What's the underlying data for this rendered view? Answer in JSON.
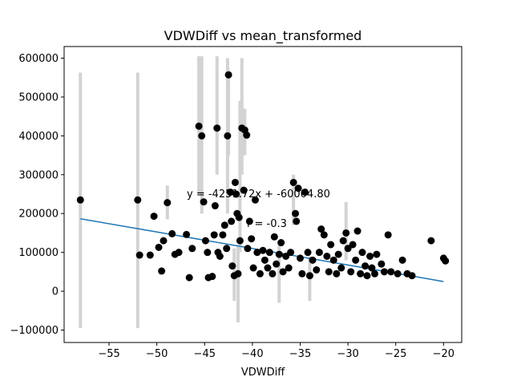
{
  "chart_data": {
    "type": "scatter",
    "title": "VDWDiff vs mean_transformed",
    "xlabel": "VDWDiff",
    "ylabel": "",
    "xlim": [
      -59.7,
      -18.1
    ],
    "ylim": [
      -132000,
      630000
    ],
    "xticks": [
      -55,
      -50,
      -45,
      -40,
      -35,
      -30,
      -25,
      -20
    ],
    "yticks": [
      -100000,
      0,
      100000,
      200000,
      300000,
      400000,
      500000,
      600000
    ],
    "xtick_labels": [
      "−55",
      "−50",
      "−45",
      "−40",
      "−35",
      "−30",
      "−25",
      "−20"
    ],
    "ytick_labels": [
      "−100000",
      "0",
      "100000",
      "200000",
      "300000",
      "400000",
      "500000",
      "600000"
    ],
    "grid": false,
    "annotations": [
      "y = -4251.72x + -60004.80",
      "r = -0.3"
    ],
    "fit_line": {
      "x": [
        -58,
        -20
      ],
      "y": [
        186600,
        25000
      ],
      "color": "#1f77b4"
    },
    "marker_color": "#000000",
    "errorbar_color": "#d3d3d3",
    "points": [
      {
        "x": -58.0,
        "y": 235000,
        "lo": -95000,
        "hi": 563000
      },
      {
        "x": -52.0,
        "y": 235000,
        "lo": -95000,
        "hi": 563000
      },
      {
        "x": -51.8,
        "y": 93000
      },
      {
        "x": -50.7,
        "y": 93000
      },
      {
        "x": -50.3,
        "y": 193000
      },
      {
        "x": -49.8,
        "y": 113000
      },
      {
        "x": -49.5,
        "y": 52000
      },
      {
        "x": -49.3,
        "y": 130000
      },
      {
        "x": -48.9,
        "y": 228000,
        "lo": 185000,
        "hi": 272000
      },
      {
        "x": -48.4,
        "y": 148000
      },
      {
        "x": -48.1,
        "y": 95000
      },
      {
        "x": -47.7,
        "y": 100000
      },
      {
        "x": -46.9,
        "y": 146000
      },
      {
        "x": -46.6,
        "y": 35000
      },
      {
        "x": -46.3,
        "y": 110000
      },
      {
        "x": -45.6,
        "y": 425000,
        "lo": 250000,
        "hi": 605000
      },
      {
        "x": -45.3,
        "y": 400000,
        "lo": 200000,
        "hi": 605000
      },
      {
        "x": -45.1,
        "y": 230000
      },
      {
        "x": -44.9,
        "y": 130000
      },
      {
        "x": -44.7,
        "y": 100000
      },
      {
        "x": -44.6,
        "y": 35000
      },
      {
        "x": -44.2,
        "y": 38000
      },
      {
        "x": -44.0,
        "y": 145000
      },
      {
        "x": -43.9,
        "y": 220000
      },
      {
        "x": -43.7,
        "y": 420000,
        "lo": 300000,
        "hi": 605000
      },
      {
        "x": -43.6,
        "y": 100000
      },
      {
        "x": -43.4,
        "y": 90000
      },
      {
        "x": -43.1,
        "y": 145000
      },
      {
        "x": -42.9,
        "y": 170000
      },
      {
        "x": -42.7,
        "y": 110000
      },
      {
        "x": -42.6,
        "y": 400000,
        "lo": 200000,
        "hi": 600000
      },
      {
        "x": -42.5,
        "y": 557000,
        "lo": 350000,
        "hi": 570000
      },
      {
        "x": -42.3,
        "y": 255000
      },
      {
        "x": -42.2,
        "y": 180000
      },
      {
        "x": -42.1,
        "y": 65000
      },
      {
        "x": -41.9,
        "y": 40000,
        "lo": -25000,
        "hi": 110000
      },
      {
        "x": -41.8,
        "y": 280000
      },
      {
        "x": -41.7,
        "y": 250000
      },
      {
        "x": -41.6,
        "y": 200000
      },
      {
        "x": -41.5,
        "y": 45000,
        "lo": -80000,
        "hi": 120000
      },
      {
        "x": -41.4,
        "y": 190000
      },
      {
        "x": -41.3,
        "y": 130000,
        "lo": 100000,
        "hi": 490000
      },
      {
        "x": -41.1,
        "y": 420000,
        "lo": 300000,
        "hi": 600000
      },
      {
        "x": -40.9,
        "y": 260000
      },
      {
        "x": -40.8,
        "y": 415000,
        "lo": 350000,
        "hi": 470000
      },
      {
        "x": -40.6,
        "y": 402000
      },
      {
        "x": -40.5,
        "y": 110000
      },
      {
        "x": -40.3,
        "y": 180000
      },
      {
        "x": -40.1,
        "y": 135000
      },
      {
        "x": -39.9,
        "y": 60000
      },
      {
        "x": -39.7,
        "y": 235000
      },
      {
        "x": -39.5,
        "y": 100000
      },
      {
        "x": -39.2,
        "y": 45000
      },
      {
        "x": -38.9,
        "y": 105000
      },
      {
        "x": -38.7,
        "y": 80000
      },
      {
        "x": -38.4,
        "y": 60000
      },
      {
        "x": -38.2,
        "y": 100000
      },
      {
        "x": -37.9,
        "y": 45000
      },
      {
        "x": -37.7,
        "y": 140000
      },
      {
        "x": -37.5,
        "y": 70000
      },
      {
        "x": -37.2,
        "y": 95000,
        "lo": -30000,
        "hi": 120000
      },
      {
        "x": -37.0,
        "y": 125000
      },
      {
        "x": -36.8,
        "y": 50000
      },
      {
        "x": -36.5,
        "y": 90000
      },
      {
        "x": -36.2,
        "y": 60000
      },
      {
        "x": -36.0,
        "y": 100000
      },
      {
        "x": -35.7,
        "y": 280000,
        "lo": 170000,
        "hi": 300000
      },
      {
        "x": -35.5,
        "y": 200000
      },
      {
        "x": -35.4,
        "y": 180000
      },
      {
        "x": -35.2,
        "y": 265000
      },
      {
        "x": -35.0,
        "y": 85000
      },
      {
        "x": -34.8,
        "y": 45000
      },
      {
        "x": -34.5,
        "y": 255000
      },
      {
        "x": -34.2,
        "y": 100000
      },
      {
        "x": -34.0,
        "y": 40000,
        "lo": -25000,
        "hi": 90000
      },
      {
        "x": -33.7,
        "y": 80000
      },
      {
        "x": -33.3,
        "y": 55000
      },
      {
        "x": -33.0,
        "y": 100000
      },
      {
        "x": -32.8,
        "y": 160000
      },
      {
        "x": -32.5,
        "y": 145000
      },
      {
        "x": -32.2,
        "y": 90000
      },
      {
        "x": -32.0,
        "y": 50000
      },
      {
        "x": -31.8,
        "y": 120000
      },
      {
        "x": -31.5,
        "y": 80000
      },
      {
        "x": -31.2,
        "y": 45000
      },
      {
        "x": -31.0,
        "y": 95000
      },
      {
        "x": -30.7,
        "y": 60000
      },
      {
        "x": -30.5,
        "y": 130000
      },
      {
        "x": -30.2,
        "y": 150000,
        "lo": 80000,
        "hi": 230000
      },
      {
        "x": -30.0,
        "y": 110000
      },
      {
        "x": -29.7,
        "y": 50000
      },
      {
        "x": -29.5,
        "y": 120000
      },
      {
        "x": -29.2,
        "y": 80000
      },
      {
        "x": -29.0,
        "y": 155000
      },
      {
        "x": -28.7,
        "y": 45000
      },
      {
        "x": -28.5,
        "y": 100000
      },
      {
        "x": -28.2,
        "y": 65000
      },
      {
        "x": -28.0,
        "y": 40000
      },
      {
        "x": -27.7,
        "y": 90000
      },
      {
        "x": -27.5,
        "y": 60000
      },
      {
        "x": -27.2,
        "y": 45000
      },
      {
        "x": -27.0,
        "y": 95000
      },
      {
        "x": -26.5,
        "y": 70000
      },
      {
        "x": -26.2,
        "y": 50000
      },
      {
        "x": -25.8,
        "y": 145000
      },
      {
        "x": -25.5,
        "y": 50000
      },
      {
        "x": -24.8,
        "y": 45000
      },
      {
        "x": -24.3,
        "y": 80000
      },
      {
        "x": -23.8,
        "y": 45000
      },
      {
        "x": -23.3,
        "y": 40000
      },
      {
        "x": -21.3,
        "y": 130000
      },
      {
        "x": -20.0,
        "y": 85000
      },
      {
        "x": -19.8,
        "y": 78000
      }
    ]
  }
}
